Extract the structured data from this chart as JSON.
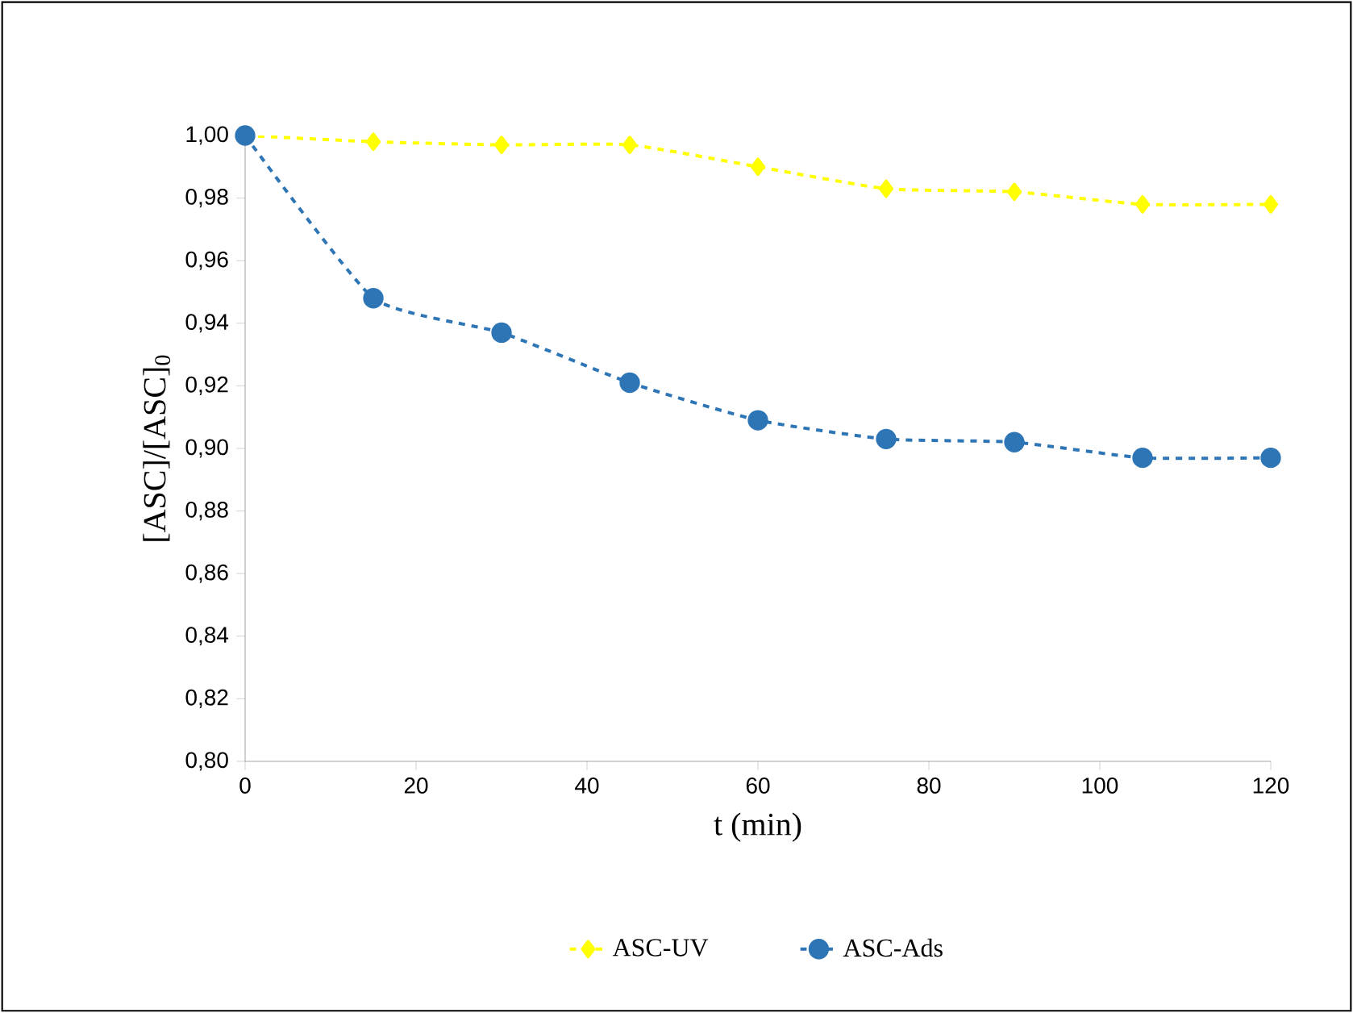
{
  "chart_data": {
    "type": "line",
    "xlabel": "t (min)",
    "ylabel": "[ASC]/[ASC]$_{0}$",
    "x": [
      0,
      15,
      30,
      45,
      60,
      75,
      90,
      105,
      120
    ],
    "series": [
      {
        "name": "ASC-UV",
        "color": "#ffff00",
        "marker": "diamond",
        "line_style": "dashed",
        "values": [
          1.0,
          0.998,
          0.997,
          0.997,
          0.99,
          0.983,
          0.982,
          0.978,
          0.978
        ]
      },
      {
        "name": "ASC-Ads",
        "color": "#2e75b6",
        "marker": "circle",
        "line_style": "dashed",
        "values": [
          1.0,
          0.948,
          0.937,
          0.921,
          0.909,
          0.903,
          0.902,
          0.897,
          0.897
        ]
      }
    ],
    "xlim": [
      0,
      120
    ],
    "xticks": [
      0,
      20,
      40,
      60,
      80,
      100,
      120
    ],
    "ylim": [
      0.8,
      1.0
    ],
    "yticks": [
      {
        "value": 0.8,
        "label": "0,80"
      },
      {
        "value": 0.82,
        "label": "0,82"
      },
      {
        "value": 0.84,
        "label": "0,84"
      },
      {
        "value": 0.86,
        "label": "0,86"
      },
      {
        "value": 0.88,
        "label": "0,88"
      },
      {
        "value": 0.9,
        "label": "0,90"
      },
      {
        "value": 0.92,
        "label": "0,92"
      },
      {
        "value": 0.94,
        "label": "0,94"
      },
      {
        "value": 0.96,
        "label": "0,96"
      },
      {
        "value": 0.98,
        "label": "0,98"
      },
      {
        "value": 1.0,
        "label": "1,00"
      }
    ],
    "grid": false,
    "legend": "bottom"
  }
}
